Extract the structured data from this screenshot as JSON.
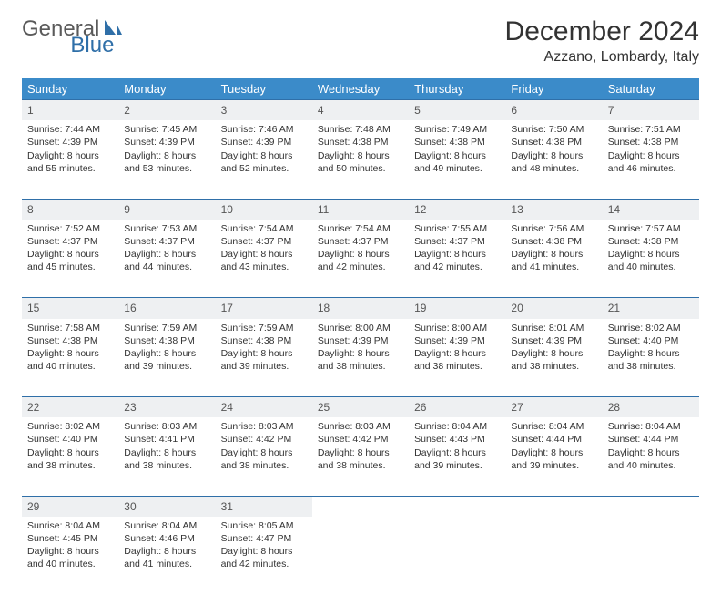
{
  "logo": {
    "text1": "General",
    "text2": "Blue"
  },
  "title": "December 2024",
  "location": "Azzano, Lombardy, Italy",
  "colors": {
    "header_bg": "#3b8bc9",
    "header_text": "#ffffff",
    "daynum_bg": "#eef0f2",
    "row_border": "#2f6fa8",
    "logo_gray": "#5a5a5a",
    "logo_blue": "#2f6fa8"
  },
  "weekdays": [
    "Sunday",
    "Monday",
    "Tuesday",
    "Wednesday",
    "Thursday",
    "Friday",
    "Saturday"
  ],
  "weeks": [
    [
      {
        "n": "1",
        "sr": "Sunrise: 7:44 AM",
        "ss": "Sunset: 4:39 PM",
        "dl": "Daylight: 8 hours and 55 minutes."
      },
      {
        "n": "2",
        "sr": "Sunrise: 7:45 AM",
        "ss": "Sunset: 4:39 PM",
        "dl": "Daylight: 8 hours and 53 minutes."
      },
      {
        "n": "3",
        "sr": "Sunrise: 7:46 AM",
        "ss": "Sunset: 4:39 PM",
        "dl": "Daylight: 8 hours and 52 minutes."
      },
      {
        "n": "4",
        "sr": "Sunrise: 7:48 AM",
        "ss": "Sunset: 4:38 PM",
        "dl": "Daylight: 8 hours and 50 minutes."
      },
      {
        "n": "5",
        "sr": "Sunrise: 7:49 AM",
        "ss": "Sunset: 4:38 PM",
        "dl": "Daylight: 8 hours and 49 minutes."
      },
      {
        "n": "6",
        "sr": "Sunrise: 7:50 AM",
        "ss": "Sunset: 4:38 PM",
        "dl": "Daylight: 8 hours and 48 minutes."
      },
      {
        "n": "7",
        "sr": "Sunrise: 7:51 AM",
        "ss": "Sunset: 4:38 PM",
        "dl": "Daylight: 8 hours and 46 minutes."
      }
    ],
    [
      {
        "n": "8",
        "sr": "Sunrise: 7:52 AM",
        "ss": "Sunset: 4:37 PM",
        "dl": "Daylight: 8 hours and 45 minutes."
      },
      {
        "n": "9",
        "sr": "Sunrise: 7:53 AM",
        "ss": "Sunset: 4:37 PM",
        "dl": "Daylight: 8 hours and 44 minutes."
      },
      {
        "n": "10",
        "sr": "Sunrise: 7:54 AM",
        "ss": "Sunset: 4:37 PM",
        "dl": "Daylight: 8 hours and 43 minutes."
      },
      {
        "n": "11",
        "sr": "Sunrise: 7:54 AM",
        "ss": "Sunset: 4:37 PM",
        "dl": "Daylight: 8 hours and 42 minutes."
      },
      {
        "n": "12",
        "sr": "Sunrise: 7:55 AM",
        "ss": "Sunset: 4:37 PM",
        "dl": "Daylight: 8 hours and 42 minutes."
      },
      {
        "n": "13",
        "sr": "Sunrise: 7:56 AM",
        "ss": "Sunset: 4:38 PM",
        "dl": "Daylight: 8 hours and 41 minutes."
      },
      {
        "n": "14",
        "sr": "Sunrise: 7:57 AM",
        "ss": "Sunset: 4:38 PM",
        "dl": "Daylight: 8 hours and 40 minutes."
      }
    ],
    [
      {
        "n": "15",
        "sr": "Sunrise: 7:58 AM",
        "ss": "Sunset: 4:38 PM",
        "dl": "Daylight: 8 hours and 40 minutes."
      },
      {
        "n": "16",
        "sr": "Sunrise: 7:59 AM",
        "ss": "Sunset: 4:38 PM",
        "dl": "Daylight: 8 hours and 39 minutes."
      },
      {
        "n": "17",
        "sr": "Sunrise: 7:59 AM",
        "ss": "Sunset: 4:38 PM",
        "dl": "Daylight: 8 hours and 39 minutes."
      },
      {
        "n": "18",
        "sr": "Sunrise: 8:00 AM",
        "ss": "Sunset: 4:39 PM",
        "dl": "Daylight: 8 hours and 38 minutes."
      },
      {
        "n": "19",
        "sr": "Sunrise: 8:00 AM",
        "ss": "Sunset: 4:39 PM",
        "dl": "Daylight: 8 hours and 38 minutes."
      },
      {
        "n": "20",
        "sr": "Sunrise: 8:01 AM",
        "ss": "Sunset: 4:39 PM",
        "dl": "Daylight: 8 hours and 38 minutes."
      },
      {
        "n": "21",
        "sr": "Sunrise: 8:02 AM",
        "ss": "Sunset: 4:40 PM",
        "dl": "Daylight: 8 hours and 38 minutes."
      }
    ],
    [
      {
        "n": "22",
        "sr": "Sunrise: 8:02 AM",
        "ss": "Sunset: 4:40 PM",
        "dl": "Daylight: 8 hours and 38 minutes."
      },
      {
        "n": "23",
        "sr": "Sunrise: 8:03 AM",
        "ss": "Sunset: 4:41 PM",
        "dl": "Daylight: 8 hours and 38 minutes."
      },
      {
        "n": "24",
        "sr": "Sunrise: 8:03 AM",
        "ss": "Sunset: 4:42 PM",
        "dl": "Daylight: 8 hours and 38 minutes."
      },
      {
        "n": "25",
        "sr": "Sunrise: 8:03 AM",
        "ss": "Sunset: 4:42 PM",
        "dl": "Daylight: 8 hours and 38 minutes."
      },
      {
        "n": "26",
        "sr": "Sunrise: 8:04 AM",
        "ss": "Sunset: 4:43 PM",
        "dl": "Daylight: 8 hours and 39 minutes."
      },
      {
        "n": "27",
        "sr": "Sunrise: 8:04 AM",
        "ss": "Sunset: 4:44 PM",
        "dl": "Daylight: 8 hours and 39 minutes."
      },
      {
        "n": "28",
        "sr": "Sunrise: 8:04 AM",
        "ss": "Sunset: 4:44 PM",
        "dl": "Daylight: 8 hours and 40 minutes."
      }
    ],
    [
      {
        "n": "29",
        "sr": "Sunrise: 8:04 AM",
        "ss": "Sunset: 4:45 PM",
        "dl": "Daylight: 8 hours and 40 minutes."
      },
      {
        "n": "30",
        "sr": "Sunrise: 8:04 AM",
        "ss": "Sunset: 4:46 PM",
        "dl": "Daylight: 8 hours and 41 minutes."
      },
      {
        "n": "31",
        "sr": "Sunrise: 8:05 AM",
        "ss": "Sunset: 4:47 PM",
        "dl": "Daylight: 8 hours and 42 minutes."
      },
      null,
      null,
      null,
      null
    ]
  ]
}
